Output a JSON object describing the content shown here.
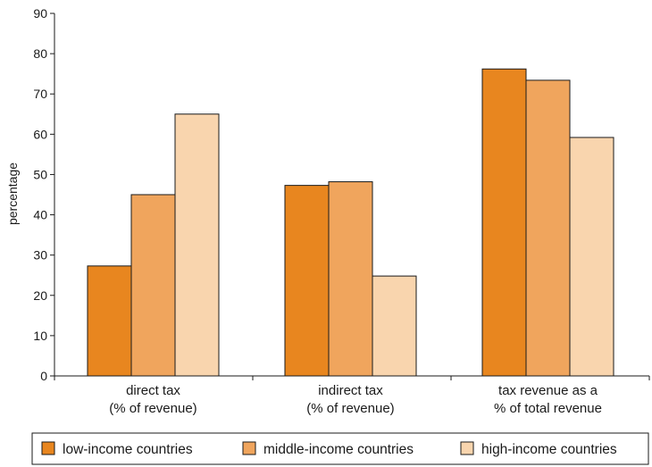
{
  "chart_data": {
    "type": "bar",
    "ylabel": "percentage",
    "ylim": [
      0,
      90
    ],
    "yticks": [
      0,
      10,
      20,
      30,
      40,
      50,
      60,
      70,
      80,
      90
    ],
    "categories": [
      [
        "direct tax",
        "(% of revenue)"
      ],
      [
        "indirect tax",
        "(% of revenue)"
      ],
      [
        "tax revenue as a",
        "% of total revenue"
      ]
    ],
    "series": [
      {
        "name": "low-income countries",
        "color": "#E8861F",
        "values": [
          27.3,
          47.3,
          76.2
        ]
      },
      {
        "name": "middle-income countries",
        "color": "#F0A55D",
        "values": [
          45.0,
          48.2,
          73.4
        ]
      },
      {
        "name": "high-income countries",
        "color": "#F9D5AE",
        "values": [
          65.0,
          24.8,
          59.2
        ]
      }
    ],
    "grid": false,
    "legend_position": "bottom"
  }
}
